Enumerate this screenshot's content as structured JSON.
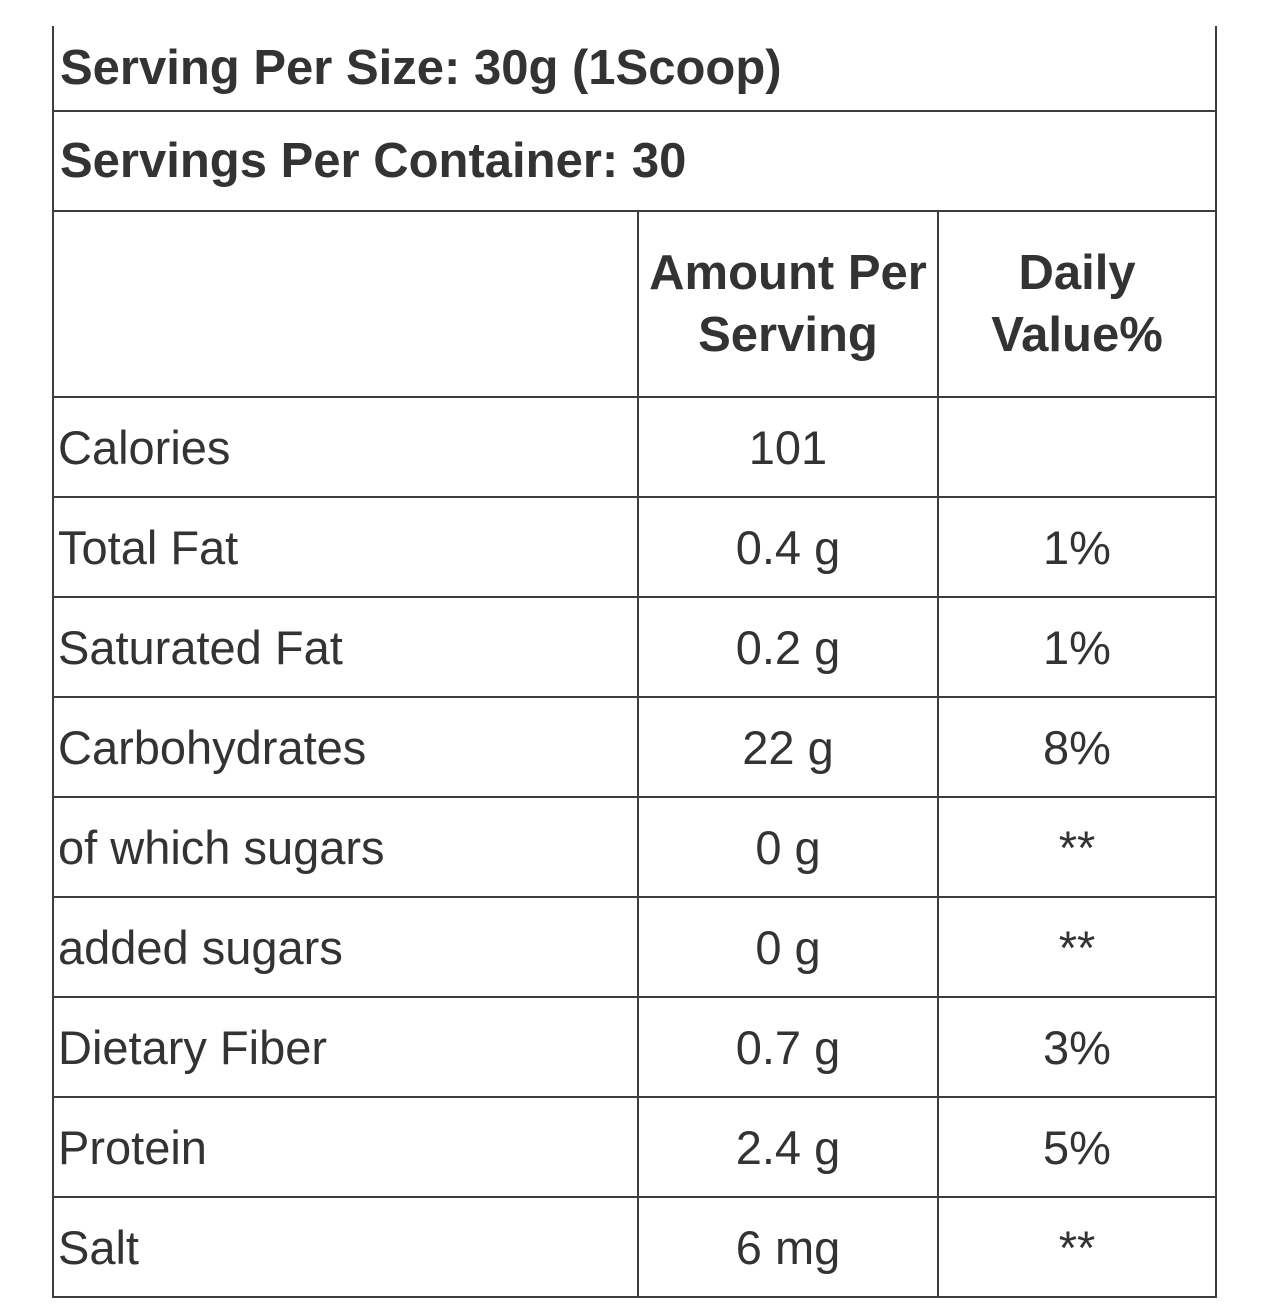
{
  "header": {
    "serving_per_size": "Serving Per Size: 30g (1Scoop)",
    "servings_per_container": "Servings Per Container: 30"
  },
  "table": {
    "columns": [
      "",
      "Amount Per Serving",
      "Daily Value%"
    ],
    "rows": [
      {
        "label": "Calories",
        "amount": "101",
        "daily_value": ""
      },
      {
        "label": "Total Fat",
        "amount": "0.4 g",
        "daily_value": "1%"
      },
      {
        "label": "Saturated Fat",
        "amount": "0.2 g",
        "daily_value": "1%"
      },
      {
        "label": "Carbohydrates",
        "amount": "22 g",
        "daily_value": "8%"
      },
      {
        "label": "of which sugars",
        "amount": "0 g",
        "daily_value": "**"
      },
      {
        "label": "added sugars",
        "amount": "0 g",
        "daily_value": "**"
      },
      {
        "label": "Dietary Fiber",
        "amount": "0.7 g",
        "daily_value": "3%"
      },
      {
        "label": "Protein",
        "amount": "2.4 g",
        "daily_value": "5%"
      },
      {
        "label": "Salt",
        "amount": "6 mg",
        "daily_value": "**"
      }
    ]
  },
  "colors": {
    "text": "#333333",
    "border": "#3d3d3d",
    "background": "#ffffff"
  }
}
